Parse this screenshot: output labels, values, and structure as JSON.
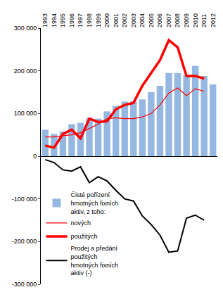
{
  "chart_data": {
    "type": "bar",
    "categories": [
      "1993",
      "1994",
      "1995",
      "1996",
      "1997",
      "1998",
      "1999",
      "2000",
      "2001",
      "2002",
      "2003",
      "2004",
      "2005",
      "2006",
      "2007",
      "2008",
      "2009",
      "2010",
      "2011",
      "2012"
    ],
    "series": [
      {
        "name": "Čisté pořízení hmotných fixních aktiv, z toho:",
        "type": "bar",
        "color": "#95b8e3",
        "values": [
          62000,
          52000,
          58000,
          75000,
          78000,
          90000,
          88000,
          105000,
          118000,
          128000,
          128000,
          133000,
          150000,
          165000,
          195000,
          195000,
          190000,
          212000,
          188000,
          168000
        ]
      },
      {
        "name": "nových",
        "type": "line",
        "line_style": "thin",
        "color": "#ff0000",
        "values": [
          45000,
          45000,
          48000,
          50000,
          55000,
          65000,
          75000,
          88000,
          90000,
          88000,
          88000,
          92000,
          100000,
          120000,
          148000,
          160000,
          142000,
          158000,
          152000,
          null
        ]
      },
      {
        "name": "použitých",
        "type": "line",
        "line_style": "thick",
        "color": "#ff0000",
        "values": [
          25000,
          20000,
          52000,
          62000,
          42000,
          88000,
          80000,
          82000,
          110000,
          120000,
          125000,
          165000,
          195000,
          225000,
          272000,
          255000,
          188000,
          188000,
          182000,
          null
        ]
      },
      {
        "name": "Prodej a předání použitých hmotných fixních aktiv (-)",
        "type": "line",
        "line_style": "medium",
        "color": "#000000",
        "values": [
          -8000,
          -15000,
          -32000,
          -35000,
          -25000,
          -62000,
          -48000,
          -58000,
          -80000,
          -100000,
          -105000,
          -140000,
          -160000,
          -185000,
          -225000,
          -222000,
          -145000,
          -138000,
          -150000,
          null
        ]
      }
    ],
    "ylim": [
      -300000,
      300000
    ],
    "yticks": [
      {
        "value": -300000,
        "label": "-300 000"
      },
      {
        "value": -200000,
        "label": "-200 000"
      },
      {
        "value": -100000,
        "label": "-100 000"
      },
      {
        "value": 0,
        "label": "0"
      },
      {
        "value": 100000,
        "label": "100 000"
      },
      {
        "value": 200000,
        "label": "200 000"
      },
      {
        "value": 300000,
        "label": "300 000"
      }
    ],
    "grid": false,
    "legend": "lower left"
  }
}
